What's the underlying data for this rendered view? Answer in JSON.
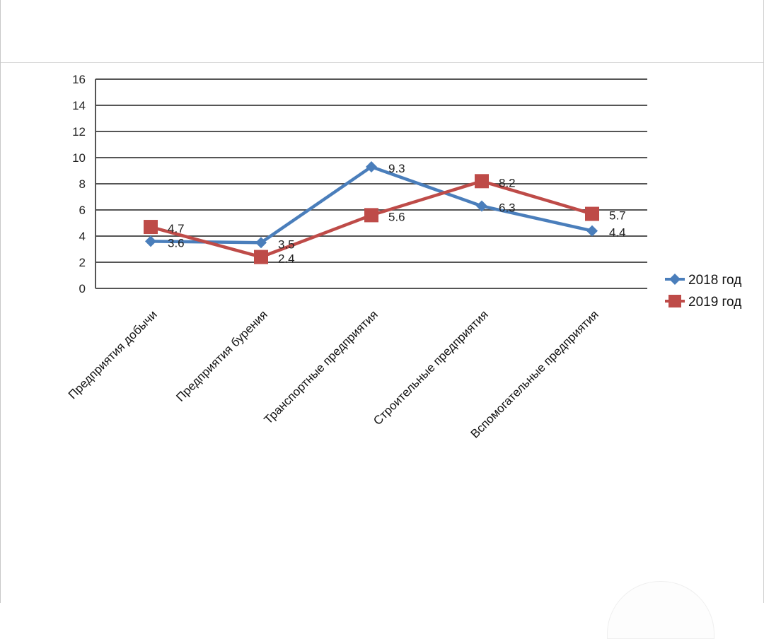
{
  "chart_data": {
    "type": "line",
    "title": "",
    "xlabel": "",
    "ylabel": "",
    "ylim": [
      0,
      16
    ],
    "yticks": [
      0,
      2,
      4,
      6,
      8,
      10,
      12,
      14,
      16
    ],
    "grid": true,
    "legend": "right",
    "categories": [
      "Предприятия добычи",
      "Предприятия бурения",
      "Транспортные предприятия",
      "Строительные предприятия",
      "Вспомогательные предприятия"
    ],
    "series": [
      {
        "name": "2018 год",
        "values": [
          3.6,
          3.5,
          9.3,
          6.3,
          4.4
        ],
        "labels": [
          "3.6",
          "3.5",
          "9.3",
          "6.3",
          "4.4"
        ],
        "color": "#4a7ebb",
        "marker": "diamond"
      },
      {
        "name": "2019 год",
        "values": [
          4.7,
          2.4,
          5.6,
          8.2,
          5.7
        ],
        "labels": [
          "4.7",
          "2.4",
          "5.6",
          "8.2",
          "5.7"
        ],
        "color": "#be4b48",
        "marker": "square"
      }
    ]
  }
}
